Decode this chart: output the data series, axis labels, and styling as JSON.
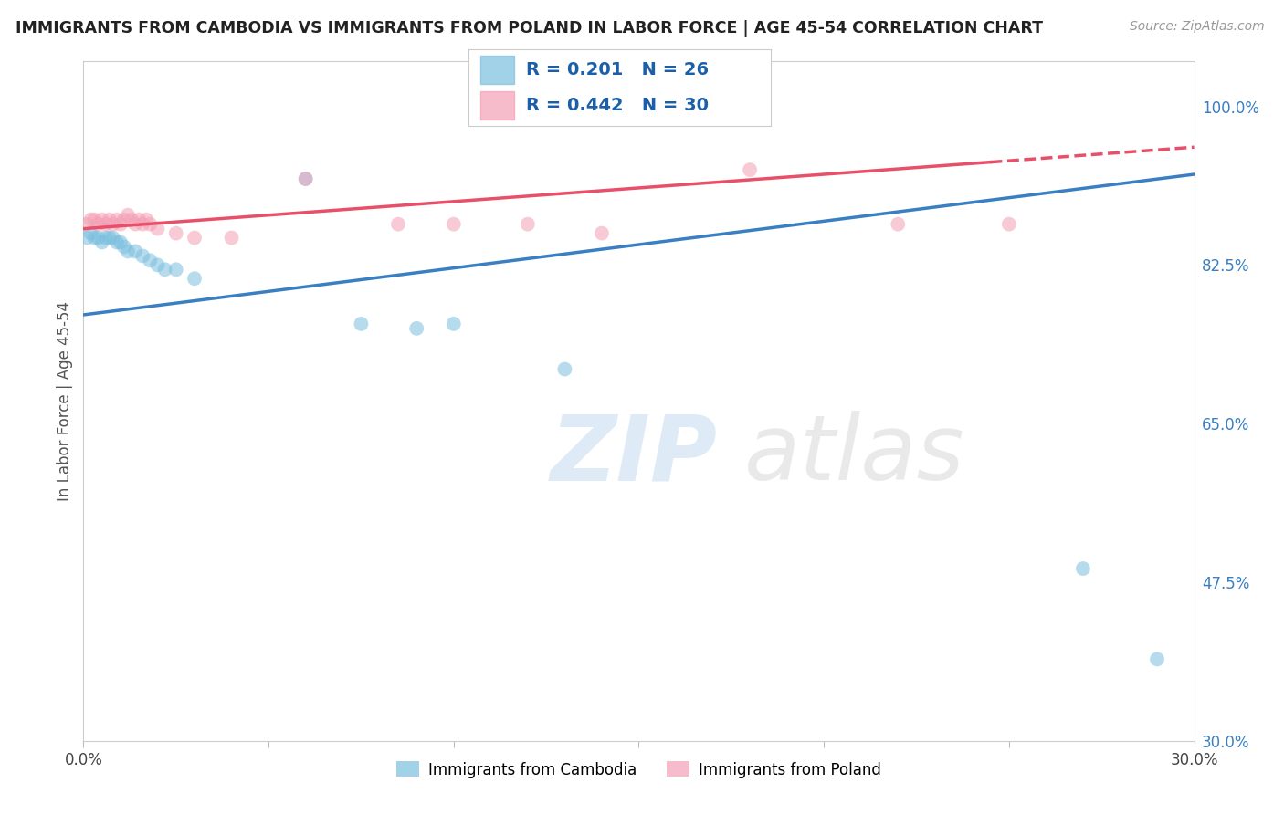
{
  "title": "IMMIGRANTS FROM CAMBODIA VS IMMIGRANTS FROM POLAND IN LABOR FORCE | AGE 45-54 CORRELATION CHART",
  "source": "Source: ZipAtlas.com",
  "ylabel": "In Labor Force | Age 45-54",
  "xlim": [
    0.0,
    0.3
  ],
  "ylim": [
    0.3,
    1.05
  ],
  "yticks": [
    0.3,
    0.475,
    0.65,
    0.825,
    1.0
  ],
  "ytick_labels": [
    "30.0%",
    "47.5%",
    "65.0%",
    "82.5%",
    "100.0%"
  ],
  "xticks": [
    0.0,
    0.05,
    0.1,
    0.15,
    0.2,
    0.25,
    0.3
  ],
  "xtick_labels": [
    "0.0%",
    "",
    "",
    "",
    "",
    "",
    "30.0%"
  ],
  "r_cambodia": 0.201,
  "n_cambodia": 26,
  "r_poland": 0.442,
  "n_poland": 30,
  "color_cambodia": "#7bbfdf",
  "color_poland": "#f4a0b5",
  "line_color_cambodia": "#3a7fc1",
  "line_color_poland": "#e8506a",
  "background_color": "#ffffff",
  "grid_color": "#cccccc",
  "title_color": "#222222",
  "axis_label_color": "#555555",
  "legend_color": "#1a5fa8",
  "cambodia_x": [
    0.001,
    0.002,
    0.003,
    0.004,
    0.005,
    0.006,
    0.007,
    0.008,
    0.009,
    0.01,
    0.011,
    0.012,
    0.014,
    0.016,
    0.018,
    0.02,
    0.022,
    0.025,
    0.03,
    0.06,
    0.075,
    0.09,
    0.1,
    0.13,
    0.27,
    0.29
  ],
  "cambodia_y": [
    0.855,
    0.86,
    0.855,
    0.855,
    0.85,
    0.855,
    0.855,
    0.855,
    0.85,
    0.85,
    0.845,
    0.84,
    0.84,
    0.835,
    0.83,
    0.825,
    0.82,
    0.82,
    0.81,
    0.92,
    0.76,
    0.755,
    0.76,
    0.71,
    0.49,
    0.39
  ],
  "poland_x": [
    0.001,
    0.002,
    0.003,
    0.004,
    0.005,
    0.006,
    0.007,
    0.008,
    0.009,
    0.01,
    0.011,
    0.012,
    0.013,
    0.014,
    0.015,
    0.016,
    0.017,
    0.018,
    0.02,
    0.025,
    0.03,
    0.04,
    0.06,
    0.085,
    0.1,
    0.12,
    0.14,
    0.18,
    0.22,
    0.25
  ],
  "poland_y": [
    0.87,
    0.875,
    0.875,
    0.87,
    0.875,
    0.87,
    0.875,
    0.87,
    0.875,
    0.87,
    0.875,
    0.88,
    0.875,
    0.87,
    0.875,
    0.87,
    0.875,
    0.87,
    0.865,
    0.86,
    0.855,
    0.855,
    0.92,
    0.87,
    0.87,
    0.87,
    0.86,
    0.93,
    0.87,
    0.87
  ]
}
